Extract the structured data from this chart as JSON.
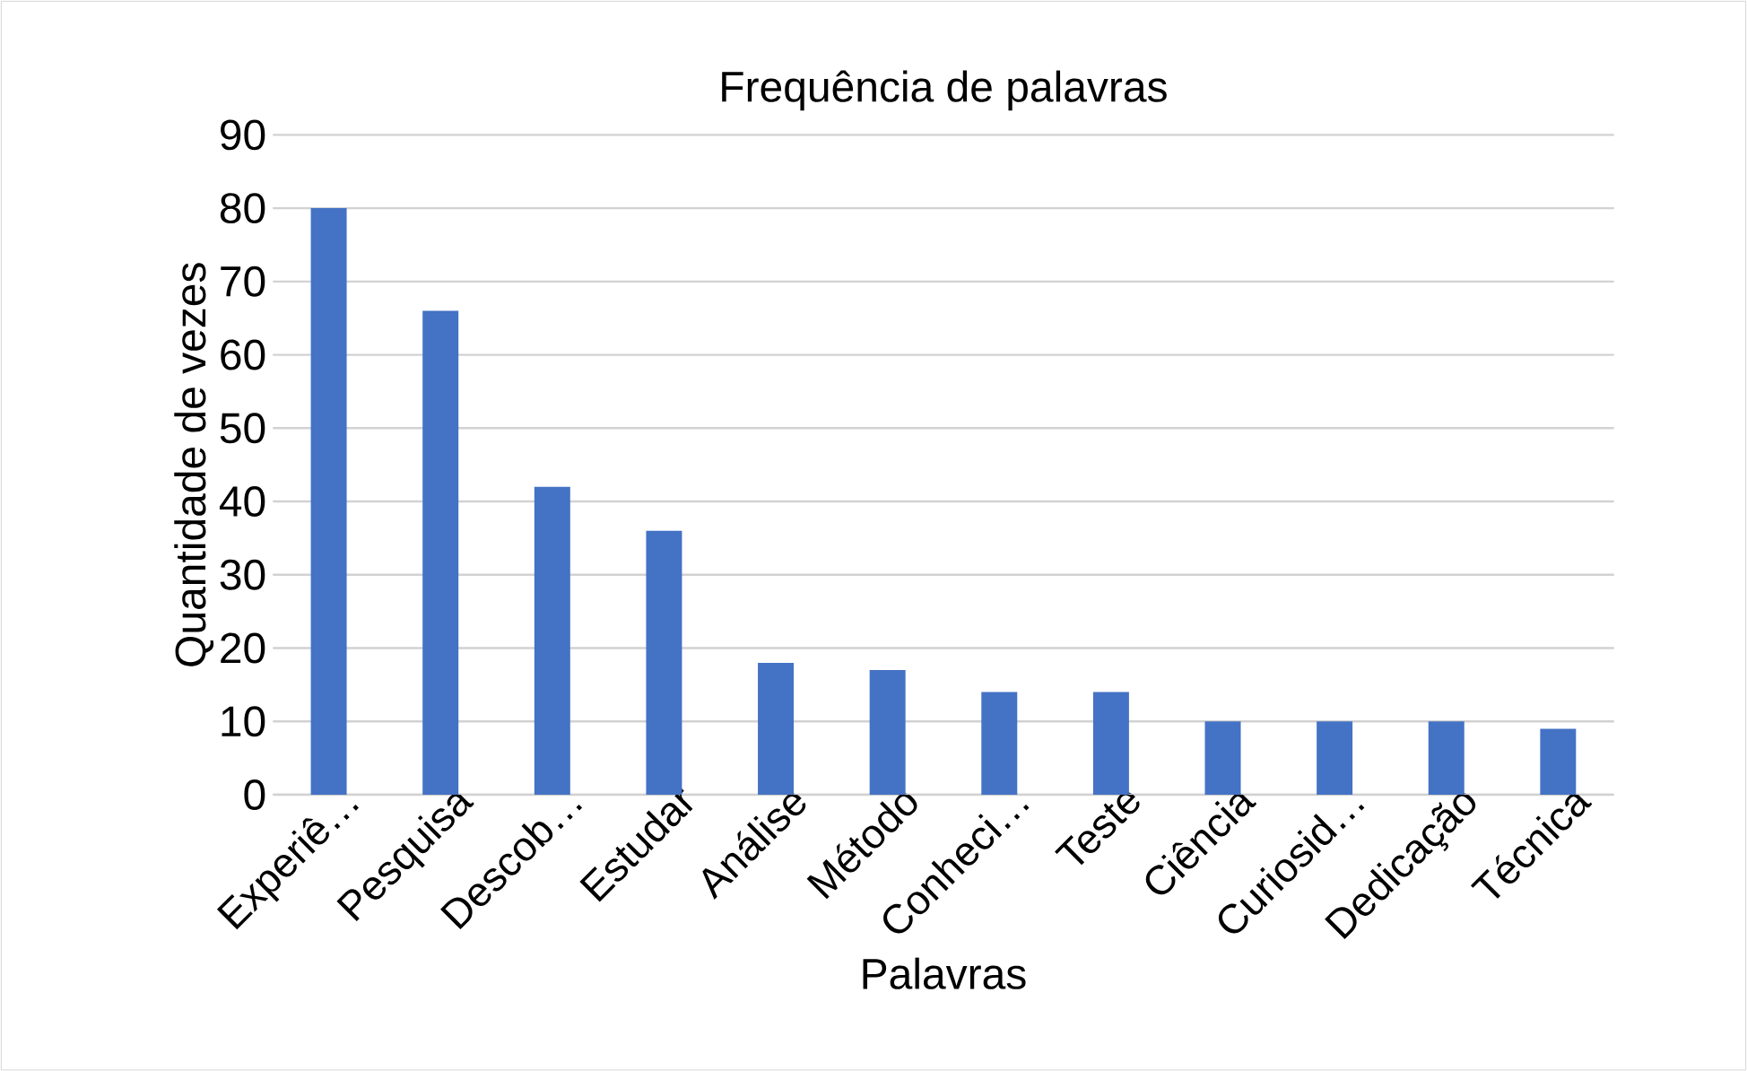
{
  "chart_data": {
    "type": "bar",
    "title": "Frequência de palavras",
    "xlabel": "Palavras",
    "ylabel": "Quantidade de vezes",
    "categories": [
      "Experiê…",
      "Pesquisa",
      "Descob…",
      "Estudar",
      "Análise",
      "Método",
      "Conheci…",
      "Teste",
      "Ciência",
      "Curiosid…",
      "Dedicação",
      "Técnica"
    ],
    "values": [
      80,
      66,
      42,
      36,
      18,
      17,
      14,
      14,
      10,
      10,
      10,
      9
    ],
    "color": "#4472c4",
    "ylim": [
      0,
      90
    ],
    "yticks": [
      0,
      10,
      20,
      30,
      40,
      50,
      60,
      70,
      80,
      90
    ],
    "grid": "y"
  }
}
